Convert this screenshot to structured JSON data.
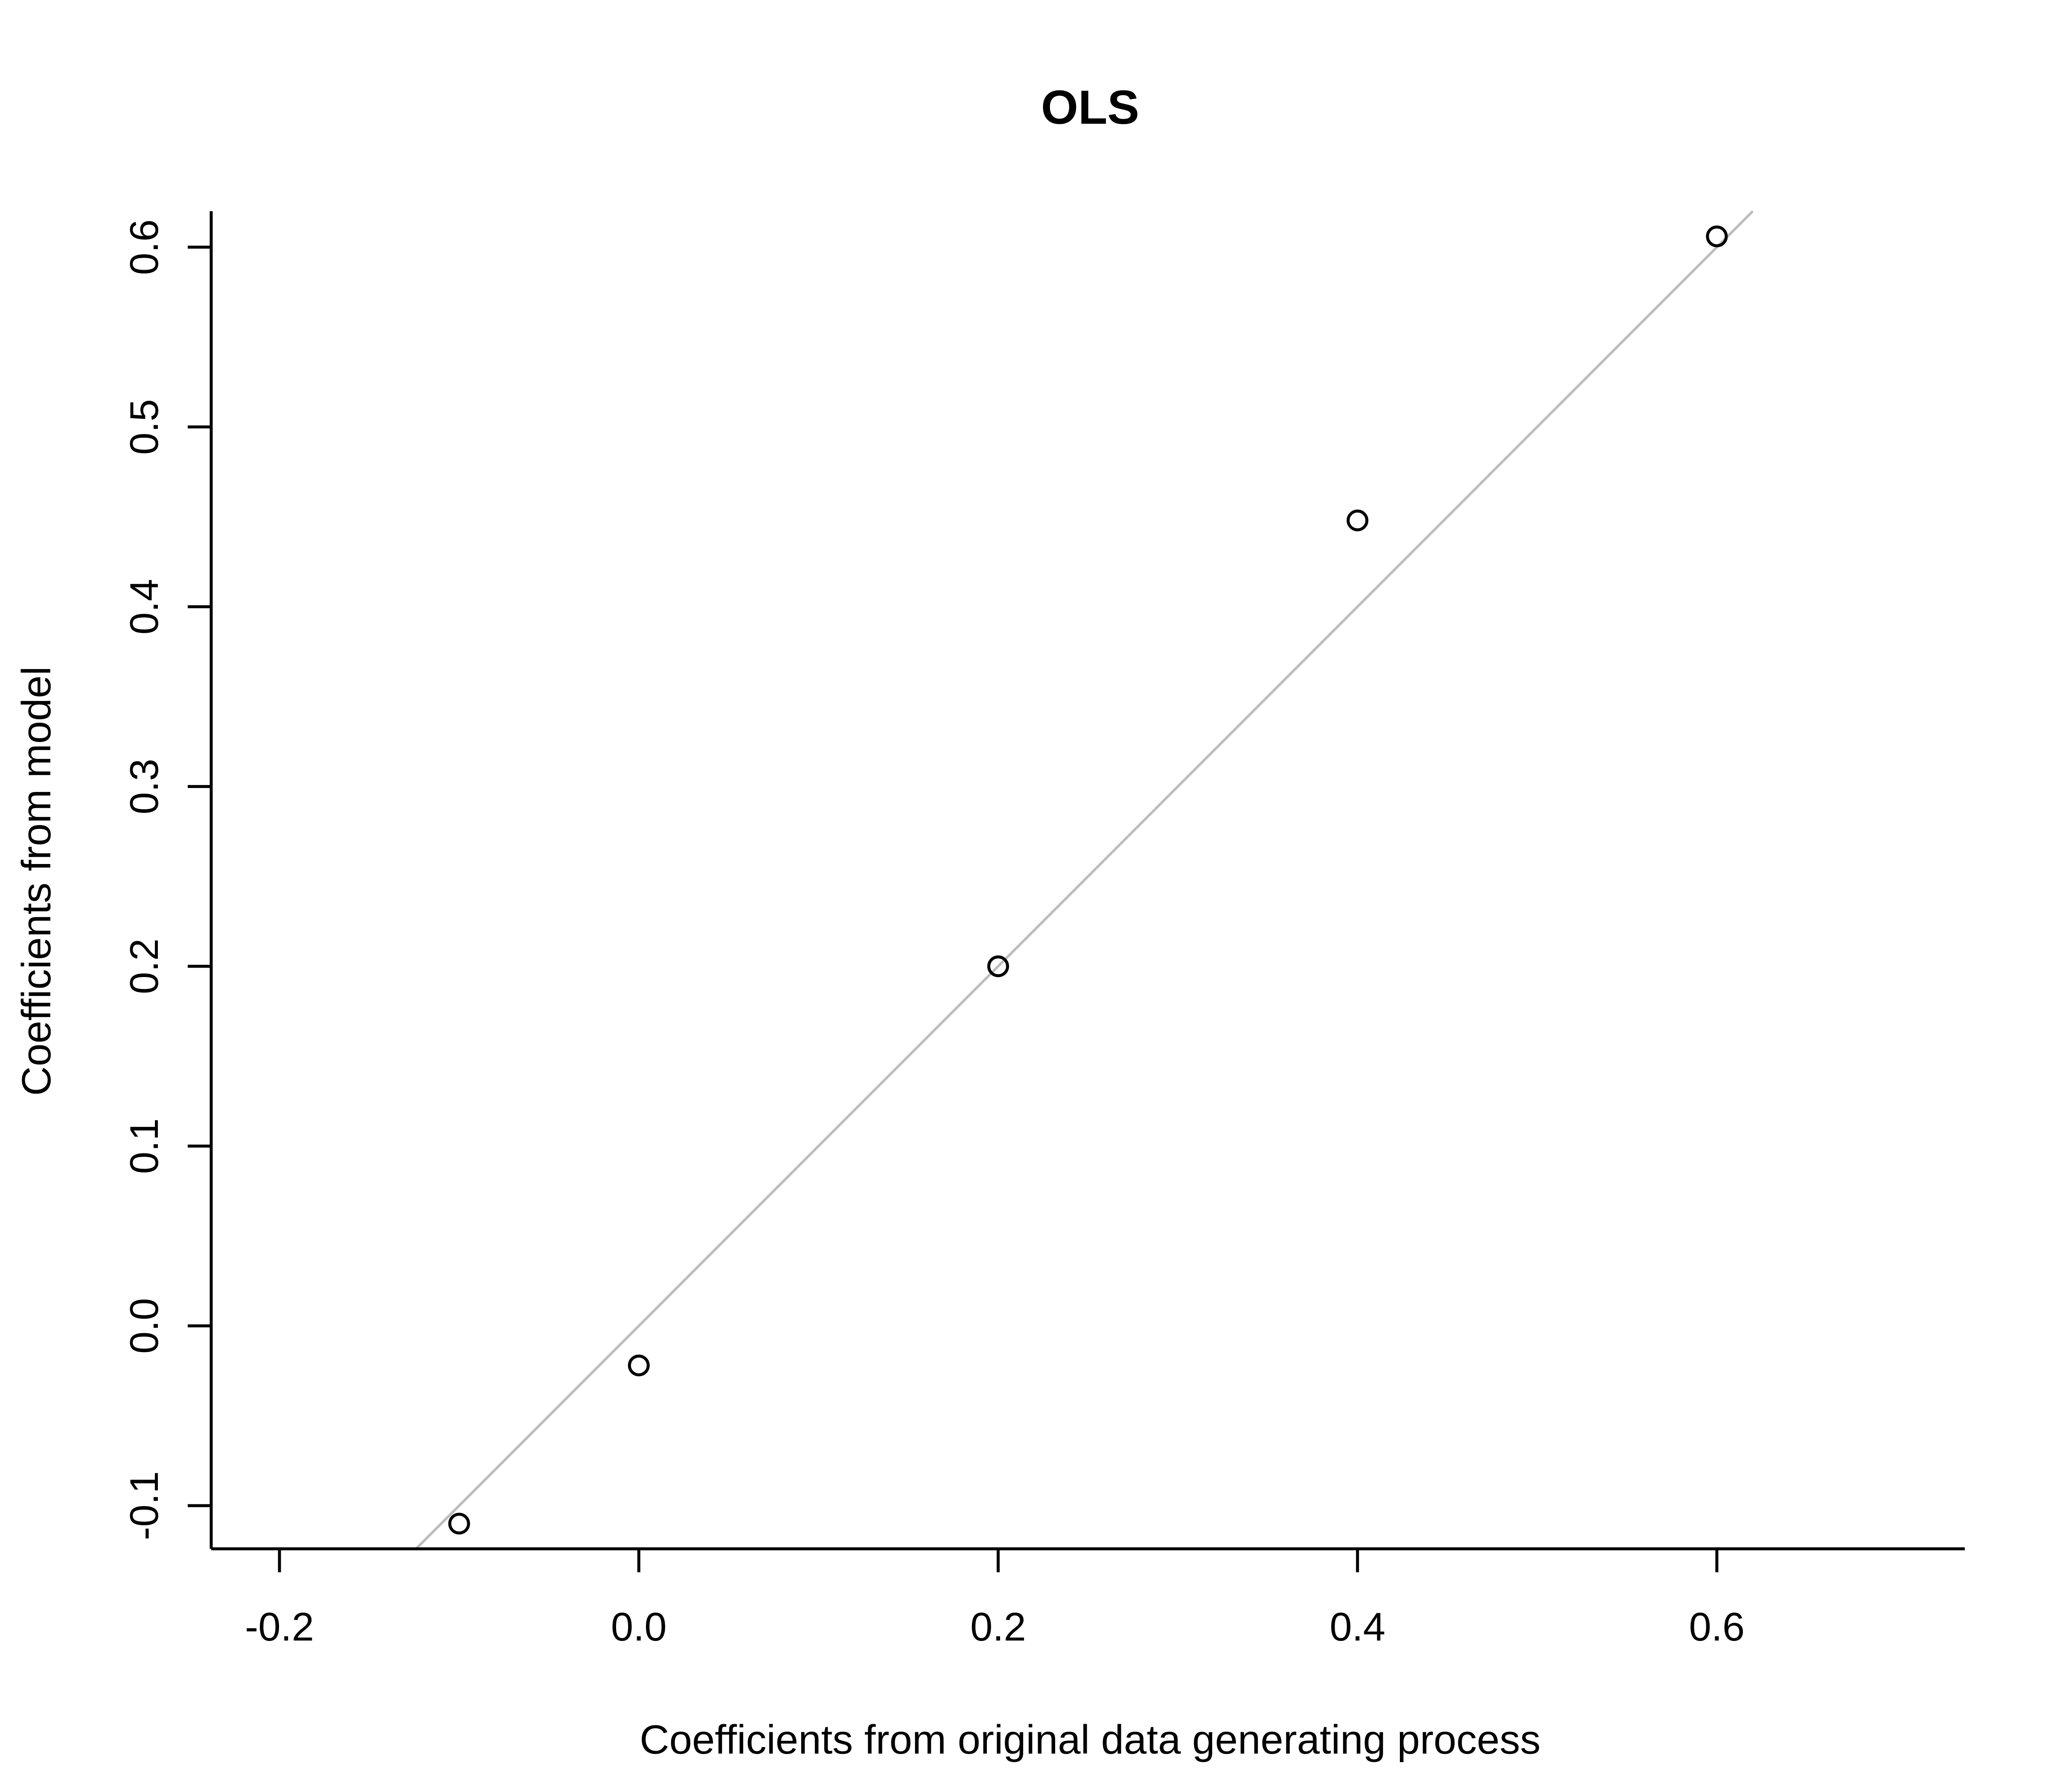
{
  "chart_data": {
    "type": "scatter",
    "title": "OLS",
    "xlabel": "Coefficients from original data generating process",
    "ylabel": "Coefficients from model",
    "xlim": [
      -0.238,
      0.738
    ],
    "ylim": [
      -0.124,
      0.62
    ],
    "x_ticks": [
      "-0.2",
      "0.0",
      "0.2",
      "0.4",
      "0.6"
    ],
    "y_ticks": [
      "-0.1",
      "0.0",
      "0.1",
      "0.2",
      "0.3",
      "0.4",
      "0.5",
      "0.6"
    ],
    "grid": false,
    "points": [
      {
        "x": -0.1,
        "y": -0.11
      },
      {
        "x": 0.0,
        "y": -0.022
      },
      {
        "x": 0.2,
        "y": 0.2
      },
      {
        "x": 0.4,
        "y": 0.448
      },
      {
        "x": 0.6,
        "y": 0.606
      }
    ],
    "reference_line": {
      "intercept": 0,
      "slope": 1,
      "color": "#bdbdbd"
    },
    "point_color": "#000000"
  }
}
